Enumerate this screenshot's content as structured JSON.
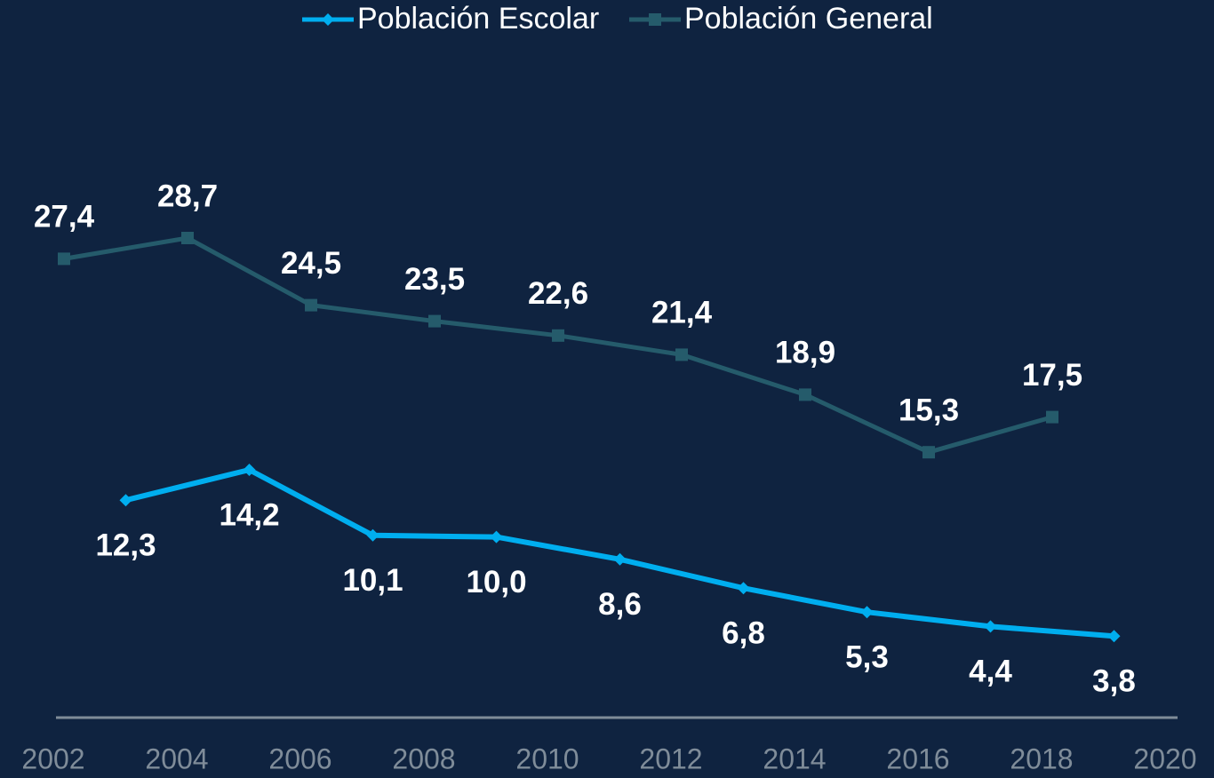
{
  "chart_data": {
    "type": "line",
    "xlim": [
      2002,
      2020
    ],
    "xticks": [
      2002,
      2004,
      2006,
      2008,
      2010,
      2012,
      2014,
      2016,
      2018,
      2020
    ],
    "ylim": [
      0,
      40
    ],
    "legend": "top",
    "series": [
      {
        "name": "Población Escolar",
        "color": "#00aeef",
        "marker": "diamond",
        "x": [
          2003,
          2005,
          2007,
          2009,
          2011,
          2013,
          2015,
          2017,
          2019
        ],
        "values": [
          12.3,
          14.2,
          10.1,
          10.0,
          8.6,
          6.8,
          5.3,
          4.4,
          3.8
        ],
        "value_labels": [
          "12,3",
          "14,2",
          "10,1",
          "10,0",
          "8,6",
          "6,8",
          "5,3",
          "4,4",
          "3,8"
        ],
        "label_position": "below"
      },
      {
        "name": "Población General",
        "color": "#255b6b",
        "marker": "square",
        "x": [
          2002,
          2004,
          2006,
          2008,
          2010,
          2012,
          2014,
          2016,
          2018
        ],
        "values": [
          27.4,
          28.7,
          24.5,
          23.5,
          22.6,
          21.4,
          18.9,
          15.3,
          17.5
        ],
        "value_labels": [
          "27,4",
          "28,7",
          "24,5",
          "23,5",
          "22,6",
          "21,4",
          "18,9",
          "15,3",
          "17,5"
        ],
        "label_position": "above"
      }
    ]
  }
}
